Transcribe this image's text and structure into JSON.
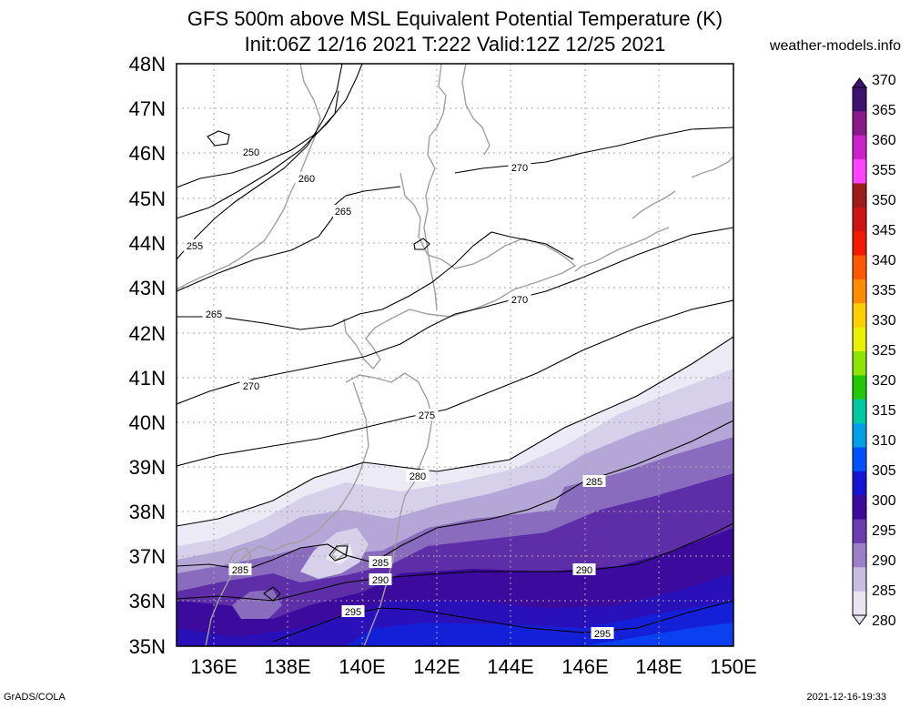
{
  "header": {
    "title_line1": "GFS 500m above MSL Equivalent Potential Temperature (K)",
    "title_line2": "Init:06Z 12/16 2021 T:222 Valid:12Z 12/25 2021",
    "site": "weather-models.info"
  },
  "map": {
    "lat_labels": [
      "48N",
      "47N",
      "46N",
      "45N",
      "44N",
      "43N",
      "42N",
      "41N",
      "40N",
      "39N",
      "38N",
      "37N",
      "36N",
      "35N"
    ],
    "lon_labels": [
      "136E",
      "138E",
      "140E",
      "142E",
      "144E",
      "146E",
      "148E",
      "150E"
    ],
    "contour_labels": [
      "250",
      "255",
      "260",
      "265",
      "265",
      "270",
      "270",
      "270",
      "275",
      "280",
      "285",
      "285",
      "285",
      "290",
      "290",
      "295",
      "295"
    ]
  },
  "colorbar": {
    "labels": [
      "370",
      "365",
      "360",
      "355",
      "350",
      "345",
      "340",
      "335",
      "330",
      "325",
      "320",
      "315",
      "310",
      "305",
      "300",
      "295",
      "290",
      "285",
      "280"
    ],
    "colors": [
      "#3c1470",
      "#8a1a8c",
      "#cc22cc",
      "#ff44ff",
      "#9e1c1c",
      "#cc1414",
      "#f01a00",
      "#ff5a00",
      "#ff8c00",
      "#ffd000",
      "#e8f000",
      "#8ce400",
      "#22c800",
      "#00c8a0",
      "#00a0e8",
      "#0050ff",
      "#1414d2",
      "#3c0a9c",
      "#6a3cb0",
      "#9a80c8",
      "#c8bce0",
      "#e8e4f2"
    ]
  },
  "footer": {
    "credit": "GrADS/COLA",
    "timestamp": "2021-12-16-19:33"
  }
}
